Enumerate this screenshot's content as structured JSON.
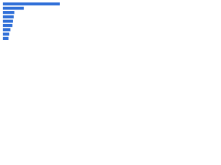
{
  "chart_data": {
    "type": "bar",
    "orientation": "horizontal",
    "categories": [
      null,
      null,
      null,
      null,
      null,
      null,
      null,
      null,
      null
    ],
    "values": [
      89,
      33,
      18,
      17,
      16,
      15,
      12,
      10,
      9
    ],
    "color": "#2f6fd8",
    "xlim": [
      0,
      100
    ]
  }
}
